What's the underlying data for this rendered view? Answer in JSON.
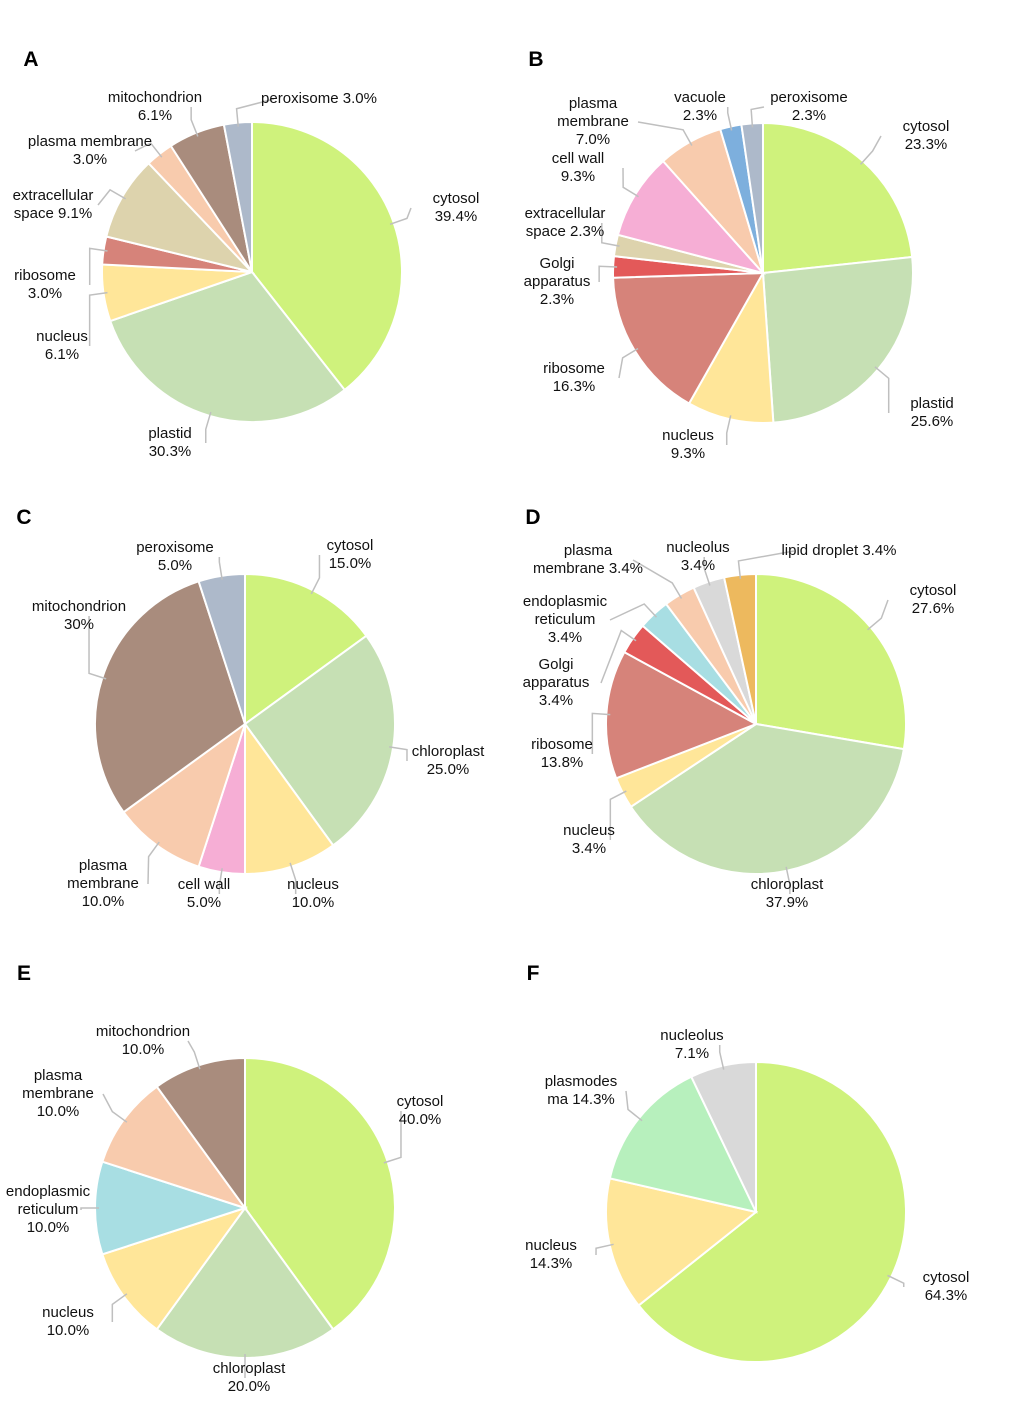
{
  "colors": {
    "cytosol": "#cff27c",
    "plastid": "#c6e0b4",
    "nucleus": "#ffe699",
    "ribosome": "#d6837a",
    "extracellular": "#ddd3ad",
    "plasma_membrane": "#f8cbad",
    "mitochondrion": "#a98c7d",
    "peroxisome": "#adb9ca",
    "cell_wall": "#f6aed5",
    "golgi": "#e35959",
    "vacuole": "#7dafdd",
    "er": "#a8dee3",
    "nucleolus": "#d9d9d9",
    "lipid_droplet": "#edb95e",
    "plasmodesma": "#b7f0bd"
  },
  "chart_data": [
    {
      "type": "pie",
      "title": "A",
      "slices": [
        {
          "name": "cytosol",
          "value": 39.4,
          "color_key": "cytosol",
          "text_lines": [
            "cytosol",
            "39.4%"
          ]
        },
        {
          "name": "plastid",
          "value": 30.3,
          "color_key": "plastid",
          "text_lines": [
            "plastid",
            "30.3%"
          ]
        },
        {
          "name": "nucleus",
          "value": 6.1,
          "color_key": "nucleus",
          "text_lines": [
            "nucleus",
            "6.1%"
          ]
        },
        {
          "name": "ribosome",
          "value": 3.0,
          "color_key": "ribosome",
          "text_lines": [
            "ribosome",
            "3.0%"
          ]
        },
        {
          "name": "extracellular space",
          "value": 9.1,
          "color_key": "extracellular",
          "text_lines": [
            "extracellular",
            "space 9.1%"
          ]
        },
        {
          "name": "plasma membrane",
          "value": 3.0,
          "color_key": "plasma_membrane",
          "text_lines": [
            "plasma membrane",
            "3.0%"
          ]
        },
        {
          "name": "mitochondrion",
          "value": 6.1,
          "color_key": "mitochondrion",
          "text_lines": [
            "mitochondrion",
            "6.1%"
          ]
        },
        {
          "name": "peroxisome",
          "value": 3.0,
          "color_key": "peroxisome",
          "text_lines": [
            "peroxisome 3.0%"
          ]
        }
      ]
    },
    {
      "type": "pie",
      "title": "B",
      "slices": [
        {
          "name": "cytosol",
          "value": 23.3,
          "color_key": "cytosol",
          "text_lines": [
            "cytosol",
            "23.3%"
          ]
        },
        {
          "name": "plastid",
          "value": 25.6,
          "color_key": "plastid",
          "text_lines": [
            "plastid",
            "25.6%"
          ]
        },
        {
          "name": "nucleus",
          "value": 9.3,
          "color_key": "nucleus",
          "text_lines": [
            "nucleus",
            "9.3%"
          ]
        },
        {
          "name": "ribosome",
          "value": 16.3,
          "color_key": "ribosome",
          "text_lines": [
            "ribosome",
            "16.3%"
          ]
        },
        {
          "name": "Golgi apparatus",
          "value": 2.3,
          "color_key": "golgi",
          "text_lines": [
            "Golgi",
            "apparatus",
            "2.3%"
          ]
        },
        {
          "name": "extracellular space",
          "value": 2.3,
          "color_key": "extracellular",
          "text_lines": [
            "extracellular",
            "space 2.3%"
          ]
        },
        {
          "name": "cell wall",
          "value": 9.3,
          "color_key": "cell_wall",
          "text_lines": [
            "cell wall",
            "9.3%"
          ]
        },
        {
          "name": "plasma membrane",
          "value": 7.0,
          "color_key": "plasma_membrane",
          "text_lines": [
            "plasma",
            "membrane",
            "7.0%"
          ]
        },
        {
          "name": "vacuole",
          "value": 2.3,
          "color_key": "vacuole",
          "text_lines": [
            "vacuole",
            "2.3%"
          ]
        },
        {
          "name": "peroxisome",
          "value": 2.3,
          "color_key": "peroxisome",
          "text_lines": [
            "peroxisome",
            "2.3%"
          ]
        }
      ]
    },
    {
      "type": "pie",
      "title": "C",
      "slices": [
        {
          "name": "cytosol",
          "value": 15.0,
          "color_key": "cytosol",
          "text_lines": [
            "cytosol",
            "15.0%"
          ]
        },
        {
          "name": "chloroplast",
          "value": 25.0,
          "color_key": "plastid",
          "text_lines": [
            "chloroplast",
            "25.0%"
          ]
        },
        {
          "name": "nucleus",
          "value": 10.0,
          "color_key": "nucleus",
          "text_lines": [
            "nucleus",
            "10.0%"
          ]
        },
        {
          "name": "cell wall",
          "value": 5.0,
          "color_key": "cell_wall",
          "text_lines": [
            "cell wall",
            "5.0%"
          ]
        },
        {
          "name": "plasma membrane",
          "value": 10.0,
          "color_key": "plasma_membrane",
          "text_lines": [
            "plasma",
            "membrane",
            "10.0%"
          ]
        },
        {
          "name": "mitochondrion",
          "value": 30,
          "color_key": "mitochondrion",
          "text_lines": [
            "mitochondrion",
            "30%"
          ]
        },
        {
          "name": "peroxisome",
          "value": 5.0,
          "color_key": "peroxisome",
          "text_lines": [
            "peroxisome",
            "5.0%"
          ]
        }
      ]
    },
    {
      "type": "pie",
      "title": "D",
      "slices": [
        {
          "name": "cytosol",
          "value": 27.6,
          "color_key": "cytosol",
          "text_lines": [
            "cytosol",
            "27.6%"
          ]
        },
        {
          "name": "chloroplast",
          "value": 37.9,
          "color_key": "plastid",
          "text_lines": [
            "chloroplast",
            "37.9%"
          ]
        },
        {
          "name": "nucleus",
          "value": 3.4,
          "color_key": "nucleus",
          "text_lines": [
            "nucleus",
            "3.4%"
          ]
        },
        {
          "name": "ribosome",
          "value": 13.8,
          "color_key": "ribosome",
          "text_lines": [
            "ribosome",
            "13.8%"
          ]
        },
        {
          "name": "Golgi apparatus",
          "value": 3.4,
          "color_key": "golgi",
          "text_lines": [
            "Golgi",
            "apparatus",
            "3.4%"
          ]
        },
        {
          "name": "endoplasmic reticulum",
          "value": 3.4,
          "color_key": "er",
          "text_lines": [
            "endoplasmic",
            "reticulum",
            "3.4%"
          ]
        },
        {
          "name": "plasma membrane",
          "value": 3.4,
          "color_key": "plasma_membrane",
          "text_lines": [
            "plasma",
            "membrane 3.4%"
          ]
        },
        {
          "name": "nucleolus",
          "value": 3.4,
          "color_key": "nucleolus",
          "text_lines": [
            "nucleolus",
            "3.4%"
          ]
        },
        {
          "name": "lipid droplet",
          "value": 3.4,
          "color_key": "lipid_droplet",
          "text_lines": [
            "lipid droplet 3.4%"
          ]
        }
      ]
    },
    {
      "type": "pie",
      "title": "E",
      "slices": [
        {
          "name": "cytosol",
          "value": 40.0,
          "color_key": "cytosol",
          "text_lines": [
            "cytosol",
            "40.0%"
          ]
        },
        {
          "name": "chloroplast",
          "value": 20.0,
          "color_key": "plastid",
          "text_lines": [
            "chloroplast",
            "20.0%"
          ]
        },
        {
          "name": "nucleus",
          "value": 10.0,
          "color_key": "nucleus",
          "text_lines": [
            "nucleus",
            "10.0%"
          ]
        },
        {
          "name": "endoplasmic reticulum",
          "value": 10.0,
          "color_key": "er",
          "text_lines": [
            "endoplasmic",
            "reticulum",
            "10.0%"
          ]
        },
        {
          "name": "plasma membrane",
          "value": 10.0,
          "color_key": "plasma_membrane",
          "text_lines": [
            "plasma",
            "membrane",
            "10.0%"
          ]
        },
        {
          "name": "mitochondrion",
          "value": 10.0,
          "color_key": "mitochondrion",
          "text_lines": [
            "mitochondrion",
            "10.0%"
          ]
        }
      ]
    },
    {
      "type": "pie",
      "title": "F",
      "slices": [
        {
          "name": "cytosol",
          "value": 64.3,
          "color_key": "cytosol",
          "text_lines": [
            "cytosol",
            "64.3%"
          ]
        },
        {
          "name": "nucleus",
          "value": 14.3,
          "color_key": "nucleus",
          "text_lines": [
            "nucleus",
            "14.3%"
          ]
        },
        {
          "name": "plasmodesma",
          "value": 14.3,
          "color_key": "plasmodesma",
          "text_lines": [
            "plasmodes",
            "ma 14.3%"
          ]
        },
        {
          "name": "nucleolus",
          "value": 7.1,
          "color_key": "nucleolus",
          "text_lines": [
            "nucleolus",
            "7.1%"
          ]
        }
      ]
    }
  ]
}
